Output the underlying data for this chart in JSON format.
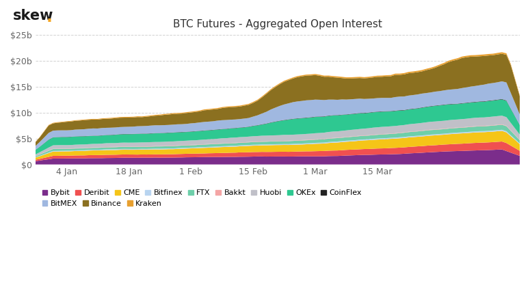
{
  "title": "BTC Futures - Aggregated Open Interest",
  "x_labels": [
    "4 Jan",
    "18 Jan",
    "1 Feb",
    "15 Feb",
    "1 Mar",
    "15 Mar"
  ],
  "n_points": 110,
  "series_colors": {
    "Bybit": "#7b2d8b",
    "Deribit": "#f05050",
    "CME": "#f5c518",
    "Bitfinex": "#b8d4f0",
    "FTX": "#6ecfaa",
    "Bakkt": "#f4a5a5",
    "Huobi": "#c0c0c8",
    "OKEx": "#2ec891",
    "CoinFlex": "#222222",
    "BitMEX": "#a0b8e0",
    "Binance": "#8b7020",
    "Kraken": "#e8a030"
  },
  "ylim": [
    0,
    25000000000
  ],
  "ytick_vals": [
    0,
    5000000000,
    10000000000,
    15000000000,
    20000000000,
    25000000000
  ],
  "ytick_labels": [
    "$0",
    "$5b",
    "$10b",
    "$15b",
    "$20b",
    "$25b"
  ],
  "background_color": "#ffffff",
  "grid_color": "#cccccc",
  "legend_row1": [
    "Bybit",
    "Deribit",
    "CME",
    "Bitfinex",
    "FTX",
    "Bakkt",
    "Huobi",
    "OKEx",
    "CoinFlex"
  ],
  "legend_row2": [
    "BitMEX",
    "Binance",
    "Kraken"
  ]
}
